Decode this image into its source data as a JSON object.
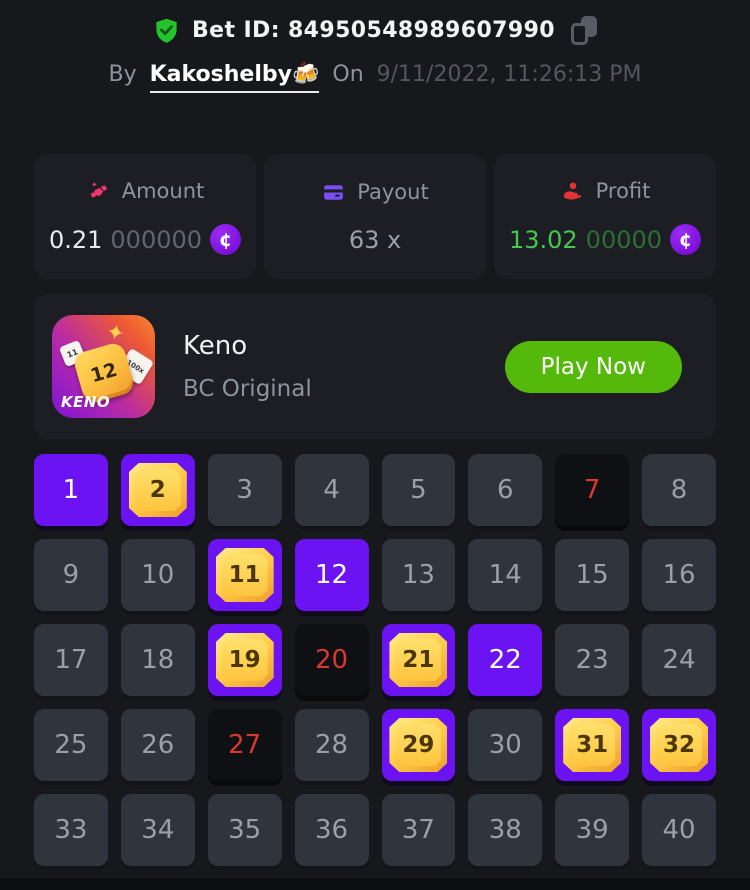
{
  "colors": {
    "accent_purple": "#6b13f2",
    "coin_purple": "#8a1af0",
    "play_green": "#54b90b",
    "shield_green": "#23c32b",
    "profit_green": "#43c94d",
    "miss_red": "#d93830",
    "amount_pink": "#f0366e",
    "payout_violet": "#7a4df5"
  },
  "header": {
    "bet_id": "Bet ID: 84950548989607990",
    "by_label": "By",
    "username": "Kakoshelby🍻",
    "on_label": "On",
    "timestamp": "9/11/2022, 11:26:13 PM",
    "icons": {
      "verified": "shield-check-icon",
      "copy": "copy-icon"
    }
  },
  "stats": {
    "amount": {
      "label": "Amount",
      "value_main": "0.21",
      "value_zeros": "000000",
      "currency_symbol": "¢",
      "icon": "gems-icon"
    },
    "payout": {
      "label": "Payout",
      "value": "63 x",
      "icon": "credit-card-icon"
    },
    "profit": {
      "label": "Profit",
      "value_main": "13.02",
      "value_zeros": "00000",
      "currency_symbol": "¢",
      "icon": "hand-coin-icon"
    }
  },
  "game_card": {
    "title": "Keno",
    "subtitle": "BC Original",
    "play_button": "Play Now",
    "icon": {
      "brand": "KENO",
      "big_tile": "12",
      "mini_tile_left": "11",
      "mini_tile_right": "100x",
      "sparkle": "✦"
    }
  },
  "keno_board": {
    "cells": [
      {
        "n": "1",
        "state": "selected"
      },
      {
        "n": "2",
        "state": "hit"
      },
      {
        "n": "3",
        "state": "normal"
      },
      {
        "n": "4",
        "state": "normal"
      },
      {
        "n": "5",
        "state": "normal"
      },
      {
        "n": "6",
        "state": "normal"
      },
      {
        "n": "7",
        "state": "miss"
      },
      {
        "n": "8",
        "state": "normal"
      },
      {
        "n": "9",
        "state": "normal"
      },
      {
        "n": "10",
        "state": "normal"
      },
      {
        "n": "11",
        "state": "hit"
      },
      {
        "n": "12",
        "state": "selected"
      },
      {
        "n": "13",
        "state": "normal"
      },
      {
        "n": "14",
        "state": "normal"
      },
      {
        "n": "15",
        "state": "normal"
      },
      {
        "n": "16",
        "state": "normal"
      },
      {
        "n": "17",
        "state": "normal"
      },
      {
        "n": "18",
        "state": "normal"
      },
      {
        "n": "19",
        "state": "hit"
      },
      {
        "n": "20",
        "state": "miss"
      },
      {
        "n": "21",
        "state": "hit"
      },
      {
        "n": "22",
        "state": "selected"
      },
      {
        "n": "23",
        "state": "normal"
      },
      {
        "n": "24",
        "state": "normal"
      },
      {
        "n": "25",
        "state": "normal"
      },
      {
        "n": "26",
        "state": "normal"
      },
      {
        "n": "27",
        "state": "miss"
      },
      {
        "n": "28",
        "state": "normal"
      },
      {
        "n": "29",
        "state": "hit"
      },
      {
        "n": "30",
        "state": "normal"
      },
      {
        "n": "31",
        "state": "hit"
      },
      {
        "n": "32",
        "state": "hit"
      },
      {
        "n": "33",
        "state": "normal"
      },
      {
        "n": "34",
        "state": "normal"
      },
      {
        "n": "35",
        "state": "normal"
      },
      {
        "n": "36",
        "state": "normal"
      },
      {
        "n": "37",
        "state": "normal"
      },
      {
        "n": "38",
        "state": "normal"
      },
      {
        "n": "39",
        "state": "normal"
      },
      {
        "n": "40",
        "state": "normal"
      }
    ]
  }
}
